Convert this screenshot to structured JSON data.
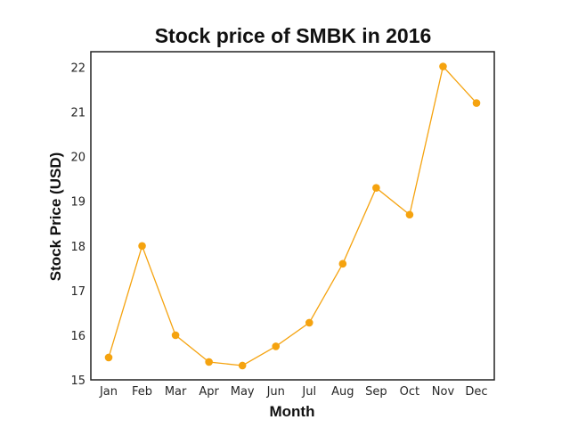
{
  "chart_data": {
    "type": "line",
    "title": "Stock price of SMBK in 2016",
    "xlabel": "Month",
    "ylabel": "Stock Price (USD)",
    "categories": [
      "Jan",
      "Feb",
      "Mar",
      "Apr",
      "May",
      "Jun",
      "Jul",
      "Aug",
      "Sep",
      "Oct",
      "Nov",
      "Dec"
    ],
    "series": [
      {
        "values": [
          15.5,
          18.0,
          16.0,
          15.4,
          15.32,
          15.75,
          16.28,
          17.6,
          19.3,
          18.7,
          22.02,
          21.2
        ],
        "color": "#f5a30f"
      }
    ],
    "yticks": [
      15,
      16,
      17,
      18,
      19,
      20,
      21,
      22
    ],
    "ylim": [
      15,
      22.35
    ],
    "grid": false,
    "legend": false
  }
}
